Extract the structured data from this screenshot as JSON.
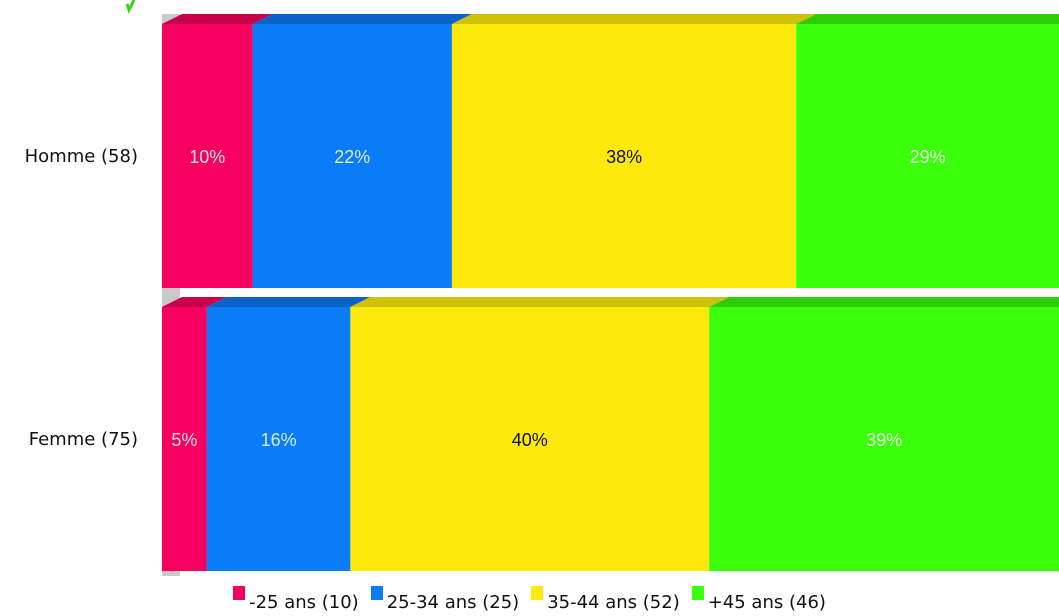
{
  "chart_data": {
    "type": "bar",
    "orientation": "horizontal",
    "stacked": true,
    "normalized_percent": true,
    "categories": [
      "Homme (58)",
      "Femme (75)"
    ],
    "series": [
      {
        "name": "-25 ans (10)",
        "color": "#f5005e",
        "top_color": "#c8004c",
        "values": [
          10,
          5
        ],
        "labels": [
          "10%",
          "5%"
        ],
        "label_color": "#f4dfe6"
      },
      {
        "name": "25-34 ans (25)",
        "color": "#0a7cf7",
        "top_color": "#0a62c7",
        "values": [
          22,
          16
        ],
        "labels": [
          "22%",
          "16%"
        ],
        "label_color": "#dcebff"
      },
      {
        "name": "35-44 ans (52)",
        "color": "#fde90c",
        "top_color": "#cfc00a",
        "values": [
          38,
          40
        ],
        "labels": [
          "38%",
          "40%"
        ],
        "label_color": "#111111"
      },
      {
        "name": "+45 ans (46)",
        "color": "#3bff0b",
        "top_color": "#2fcc09",
        "values": [
          29,
          39
        ],
        "labels": [
          "29%",
          "39%"
        ],
        "label_color": "#e6ffe0"
      }
    ],
    "xlim": [
      0,
      100
    ],
    "grid": false,
    "legend": "bottom",
    "title": "",
    "xlabel": "",
    "ylabel": ""
  }
}
